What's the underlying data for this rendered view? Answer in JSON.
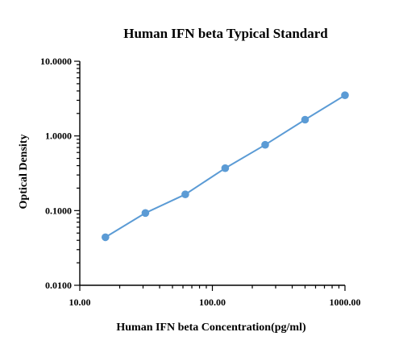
{
  "chart_data": {
    "type": "line",
    "title": "Human IFN beta Typical Standard",
    "xlabel": "Human IFN beta Concentration(pg/ml)",
    "ylabel": "Optical Density",
    "x_scale": "log",
    "y_scale": "log",
    "xlim": [
      10,
      1000
    ],
    "ylim": [
      0.01,
      10
    ],
    "x_ticks": [
      {
        "value": 10,
        "label": "10.00"
      },
      {
        "value": 100,
        "label": "100.00"
      },
      {
        "value": 1000,
        "label": "1000.00"
      }
    ],
    "y_ticks": [
      {
        "value": 0.01,
        "label": "0.0100"
      },
      {
        "value": 0.1,
        "label": "0.1000"
      },
      {
        "value": 1,
        "label": "1.0000"
      },
      {
        "value": 10,
        "label": "10.0000"
      }
    ],
    "grid": false,
    "legend": "none",
    "series": [
      {
        "color": "#5b9bd5",
        "x": [
          15.6,
          31.25,
          62.5,
          125,
          250,
          500,
          1000
        ],
        "y": [
          0.044,
          0.093,
          0.165,
          0.37,
          0.76,
          1.65,
          3.5
        ]
      }
    ]
  }
}
